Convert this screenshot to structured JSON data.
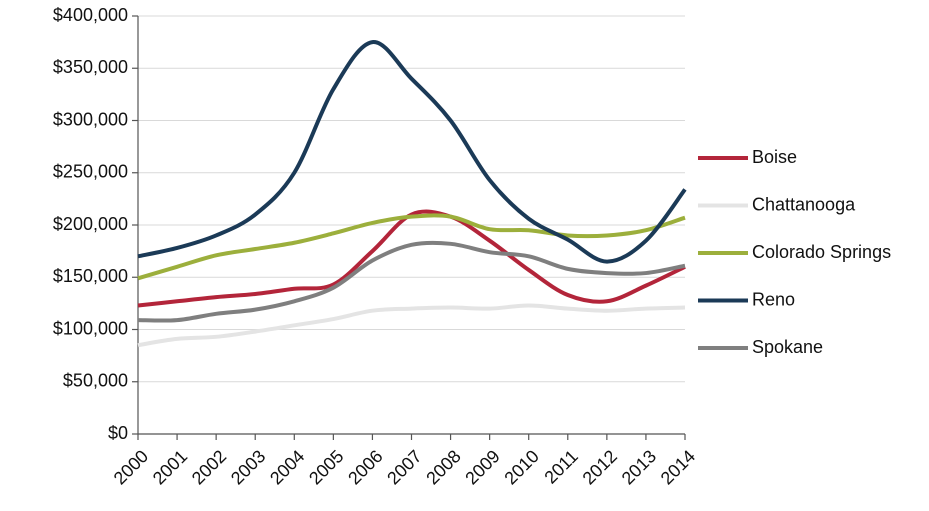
{
  "chart_data": {
    "type": "line",
    "categories": [
      "2000",
      "2001",
      "2002",
      "2003",
      "2004",
      "2005",
      "2006",
      "2007",
      "2008",
      "2009",
      "2010",
      "2011",
      "2012",
      "2013",
      "2014"
    ],
    "series": [
      {
        "name": "Boise",
        "color": "#b3253a",
        "values": [
          123000,
          127000,
          131000,
          134000,
          139000,
          143000,
          175000,
          210000,
          208000,
          185000,
          157000,
          133000,
          127000,
          142000,
          160000
        ]
      },
      {
        "name": "Chattanooga",
        "color": "#e4e4e4",
        "values": [
          85000,
          91000,
          93000,
          98000,
          104000,
          110000,
          118000,
          120000,
          121000,
          120000,
          123000,
          120000,
          118000,
          120000,
          121000
        ]
      },
      {
        "name": "Colorado Springs",
        "color": "#9caf3c",
        "values": [
          149000,
          160000,
          171000,
          177000,
          183000,
          192000,
          202000,
          208000,
          208000,
          196000,
          195000,
          190000,
          190000,
          195000,
          207000
        ]
      },
      {
        "name": "Reno",
        "color": "#1b3a57",
        "values": [
          170000,
          178000,
          190000,
          210000,
          250000,
          330000,
          375000,
          340000,
          300000,
          243000,
          206000,
          186000,
          165000,
          185000,
          234000
        ]
      },
      {
        "name": "Spokane",
        "color": "#7f7f7f",
        "values": [
          109000,
          109000,
          115000,
          119000,
          127000,
          140000,
          166000,
          181000,
          182000,
          174000,
          170000,
          158000,
          154000,
          154000,
          161000
        ]
      }
    ],
    "ylim": [
      0,
      400000
    ],
    "yticks": [
      {
        "value": 0,
        "label": "$0"
      },
      {
        "value": 50000,
        "label": "$50,000"
      },
      {
        "value": 100000,
        "label": "$100,000"
      },
      {
        "value": 150000,
        "label": "$150,000"
      },
      {
        "value": 200000,
        "label": "$200,000"
      },
      {
        "value": 250000,
        "label": "$250,000"
      },
      {
        "value": 300000,
        "label": "$300,000"
      },
      {
        "value": 350000,
        "label": "$350,000"
      },
      {
        "value": 400000,
        "label": "$400,000"
      }
    ],
    "grid": true,
    "legend": "right"
  }
}
